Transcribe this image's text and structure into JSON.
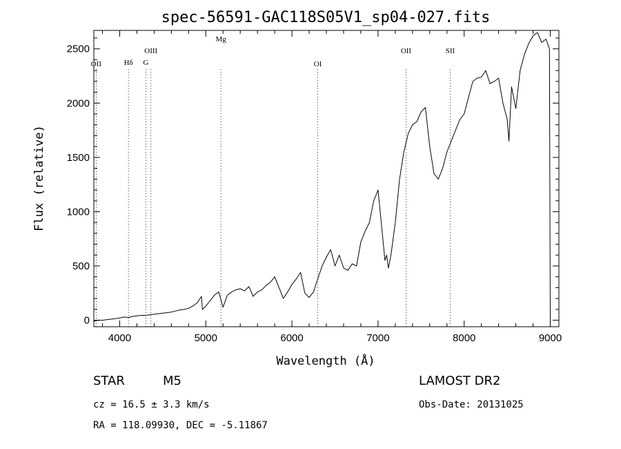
{
  "chart_data": {
    "type": "line",
    "title": "spec-56591-GAC118S05V1_sp04-027.fits",
    "xlabel": "Wavelength (Å)",
    "ylabel": "Flux (relative)",
    "xlim": [
      3700,
      9100
    ],
    "ylim": [
      -60,
      2670
    ],
    "xticks": [
      "4000",
      "5000",
      "6000",
      "7000",
      "8000",
      "9000"
    ],
    "yticks": [
      "0",
      "500",
      "1000",
      "1500",
      "2000",
      "2500"
    ],
    "line_markers": [
      {
        "label": "OII",
        "x": 3727
      },
      {
        "label": "Hδ",
        "x": 4102
      },
      {
        "label": "OIII",
        "x": 4363
      },
      {
        "label": "G",
        "x": 4304
      },
      {
        "label": "Mg",
        "x": 5175
      },
      {
        "label": "OI",
        "x": 6300
      },
      {
        "label": "OII",
        "x": 7325
      },
      {
        "label": "SII",
        "x": 7838
      }
    ],
    "series": [
      {
        "x": [
          3700,
          3750,
          3800,
          3850,
          3900,
          3950,
          4000,
          4050,
          4100,
          4150,
          4200,
          4250,
          4300,
          4350,
          4400,
          4450,
          4500,
          4550,
          4600,
          4650,
          4700,
          4750,
          4800,
          4850,
          4900,
          4950,
          4960,
          5000,
          5050,
          5100,
          5150,
          5200,
          5250,
          5300,
          5350,
          5400,
          5450,
          5500,
          5550,
          5600,
          5650,
          5700,
          5750,
          5800,
          5850,
          5900,
          5950,
          6000,
          6050,
          6100,
          6150,
          6200,
          6250,
          6300,
          6350,
          6400,
          6450,
          6500,
          6550,
          6600,
          6650,
          6700,
          6750,
          6800,
          6850,
          6900,
          6950,
          7000,
          7050,
          7080,
          7100,
          7120,
          7150,
          7200,
          7250,
          7300,
          7350,
          7400,
          7450,
          7500,
          7550,
          7600,
          7650,
          7700,
          7750,
          7800,
          7850,
          7900,
          7950,
          8000,
          8050,
          8100,
          8150,
          8200,
          8250,
          8300,
          8350,
          8400,
          8450,
          8500,
          8520,
          8550,
          8600,
          8650,
          8700,
          8750,
          8800,
          8850,
          8900,
          8950,
          8990,
          9000
        ],
        "y": [
          -10,
          0,
          0,
          5,
          10,
          15,
          20,
          30,
          25,
          35,
          40,
          45,
          45,
          50,
          55,
          60,
          65,
          70,
          75,
          85,
          95,
          100,
          110,
          130,
          160,
          220,
          100,
          130,
          180,
          230,
          260,
          120,
          230,
          260,
          280,
          290,
          270,
          310,
          220,
          260,
          280,
          320,
          350,
          400,
          300,
          200,
          260,
          330,
          380,
          440,
          250,
          210,
          260,
          380,
          500,
          580,
          650,
          500,
          600,
          480,
          460,
          520,
          500,
          720,
          820,
          900,
          1100,
          1200,
          800,
          550,
          600,
          480,
          600,
          900,
          1300,
          1550,
          1720,
          1800,
          1830,
          1920,
          1960,
          1600,
          1350,
          1300,
          1400,
          1550,
          1650,
          1750,
          1850,
          1900,
          2050,
          2200,
          2230,
          2240,
          2300,
          2180,
          2200,
          2230,
          2000,
          1850,
          1650,
          2150,
          1950,
          2300,
          2450,
          2550,
          2620,
          2650,
          2560,
          2590,
          2500,
          -10
        ]
      }
    ]
  },
  "footer": {
    "object": "STAR",
    "subclass": "M5",
    "velocity": "cz = 16.5 ± 3.3 km/s",
    "coords": "RA = 118.09930, DEC =  -5.11867",
    "survey": "LAMOST DR2",
    "obs_date": "Obs-Date: 20131025"
  }
}
